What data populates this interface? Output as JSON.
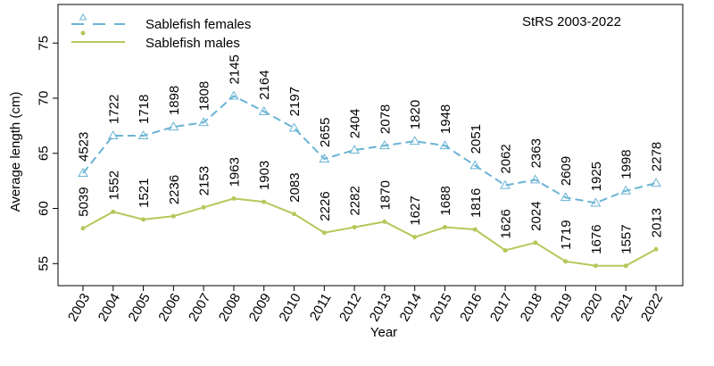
{
  "chart_data": {
    "type": "line",
    "annotation": "StRS 2003-2022",
    "xlabel": "Year",
    "ylabel": "Average length (cm)",
    "x": [
      "2003",
      "2004",
      "2005",
      "2006",
      "2007",
      "2008",
      "2009",
      "2010",
      "2011",
      "2012",
      "2013",
      "2014",
      "2015",
      "2016",
      "2017",
      "2018",
      "2019",
      "2020",
      "2021",
      "2022"
    ],
    "ylim": [
      53,
      78.5
    ],
    "yticks": [
      55,
      60,
      65,
      70,
      75
    ],
    "legend_position": "top-left",
    "series": [
      {
        "name": "Sablefish females",
        "color": "#6ab4d4",
        "dash": "dashed",
        "marker": "triangle",
        "values": [
          63.2,
          66.6,
          66.6,
          67.4,
          67.8,
          70.2,
          68.8,
          67.3,
          64.5,
          65.3,
          65.7,
          66.1,
          65.7,
          63.9,
          62.1,
          62.6,
          61.0,
          60.5,
          61.6,
          62.3
        ],
        "labels": [
          "4523",
          "1722",
          "1718",
          "1898",
          "1808",
          "2145",
          "2164",
          "2197",
          "2655",
          "2404",
          "2078",
          "1820",
          "1948",
          "2051",
          "2062",
          "2363",
          "2609",
          "1925",
          "1998",
          "2278"
        ]
      },
      {
        "name": "Sablefish males",
        "color": "#b4c85a",
        "dash": "solid",
        "marker": "dot",
        "values": [
          58.2,
          59.7,
          59.0,
          59.3,
          60.1,
          60.9,
          60.6,
          59.5,
          57.8,
          58.3,
          58.8,
          57.4,
          58.3,
          58.1,
          56.2,
          56.9,
          55.2,
          54.8,
          54.8,
          56.3
        ],
        "labels": [
          "5039",
          "1552",
          "1521",
          "2236",
          "2153",
          "1963",
          "1903",
          "2083",
          "2226",
          "2282",
          "1870",
          "1627",
          "1688",
          "1816",
          "1626",
          "2024",
          "1719",
          "1676",
          "1557",
          "2013"
        ]
      }
    ]
  }
}
